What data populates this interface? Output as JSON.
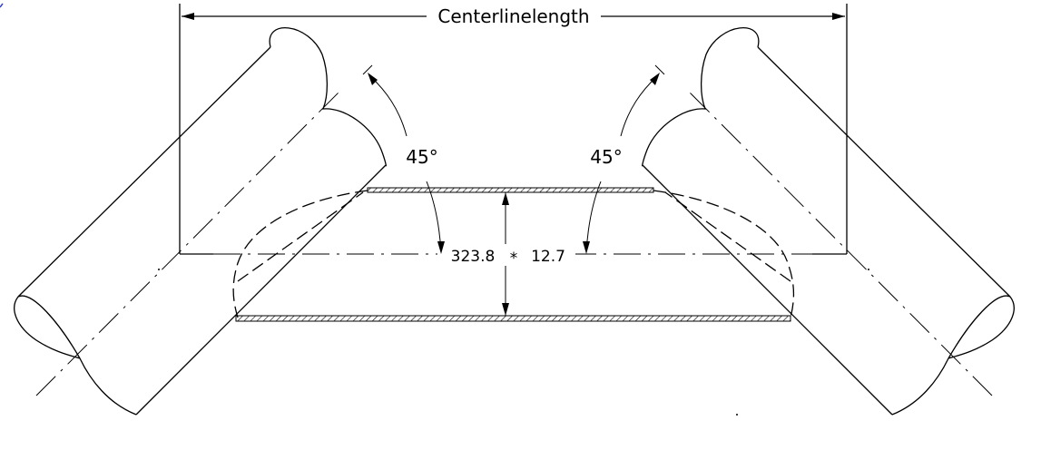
{
  "dimensions": {
    "centerline_length_label": "Centerlinelength",
    "angle_left": "45°",
    "angle_right": "45°",
    "pipe_diameter": "323.8",
    "separator": "*",
    "wall_thickness": "12.7"
  }
}
